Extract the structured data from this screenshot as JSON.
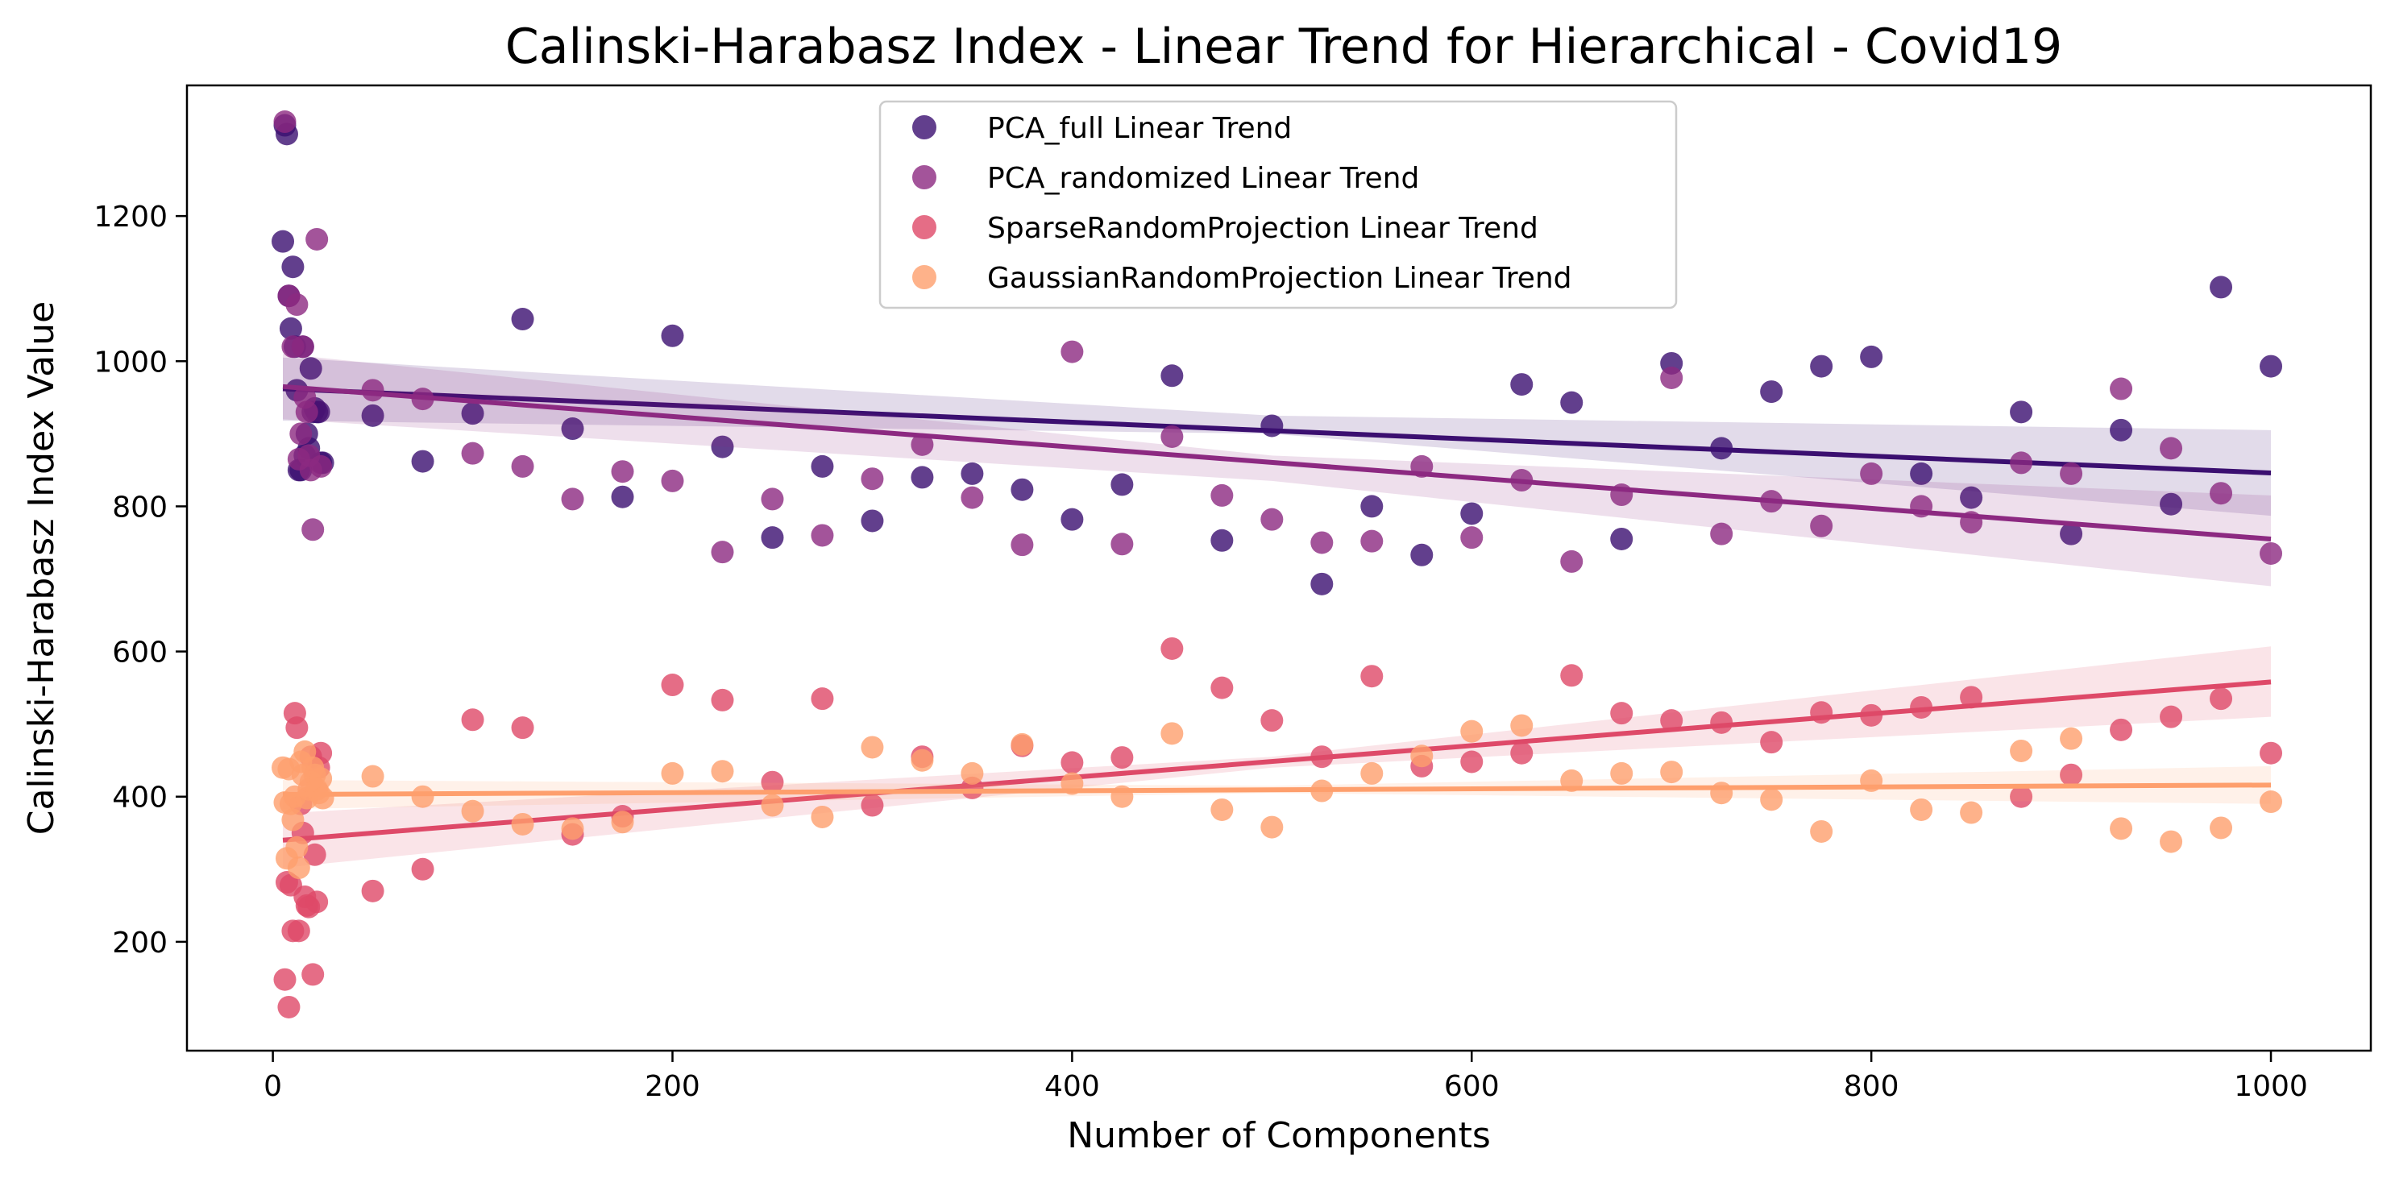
{
  "chart_data": {
    "type": "scatter",
    "title": "Calinski-Harabasz Index - Linear Trend for Hierarchical - Covid19",
    "xlabel": "Number of Components",
    "ylabel": "Calinski-Harabasz Index Value",
    "xlim": [
      -43,
      1050
    ],
    "ylim": [
      50,
      1380
    ],
    "xticks": [
      0,
      200,
      400,
      600,
      800,
      1000
    ],
    "yticks": [
      200,
      400,
      600,
      800,
      1000,
      1200
    ],
    "grid": false,
    "legend_position": "top-center",
    "series": [
      {
        "name": "PCA_full Linear Trend",
        "color": "#3b0f70",
        "trend": {
          "x": [
            5,
            1000
          ],
          "y": [
            962,
            846
          ]
        },
        "band": {
          "x": [
            5,
            500,
            1000
          ],
          "upper": [
            1005,
            925,
            905
          ],
          "lower": [
            918,
            900,
            787
          ]
        },
        "x": [
          5,
          6,
          7,
          8,
          9,
          10,
          11,
          12,
          13,
          14,
          15,
          16,
          17,
          18,
          19,
          20,
          21,
          22,
          23,
          24,
          25,
          50,
          75,
          100,
          125,
          150,
          175,
          200,
          225,
          250,
          275,
          300,
          325,
          350,
          375,
          400,
          425,
          450,
          475,
          500,
          525,
          550,
          575,
          600,
          625,
          650,
          675,
          700,
          725,
          750,
          775,
          800,
          825,
          850,
          875,
          900,
          925,
          950,
          975,
          1000
        ],
        "y": [
          1165,
          1325,
          1313,
          1090,
          1045,
          1130,
          1020,
          960,
          850,
          850,
          1020,
          870,
          900,
          880,
          990,
          930,
          935,
          930,
          930,
          860,
          860,
          925,
          862,
          928,
          1058,
          907,
          813,
          1035,
          882,
          757,
          855,
          780,
          840,
          845,
          823,
          782,
          830,
          980,
          753,
          911,
          693,
          800,
          733,
          790,
          968,
          943,
          755,
          997,
          880,
          958,
          993,
          1006,
          845,
          812,
          930,
          762,
          905,
          803,
          1102,
          993
        ]
      },
      {
        "name": "PCA_randomized Linear Trend",
        "color": "#8c2981",
        "trend": {
          "x": [
            5,
            1000
          ],
          "y": [
            965,
            755
          ]
        },
        "band": {
          "x": [
            5,
            500,
            1000
          ],
          "upper": [
            1010,
            870,
            815
          ],
          "lower": [
            920,
            835,
            690
          ]
        },
        "x": [
          6,
          8,
          10,
          12,
          13,
          14,
          15,
          16,
          17,
          18,
          19,
          20,
          22,
          24,
          50,
          75,
          100,
          125,
          150,
          175,
          200,
          225,
          250,
          275,
          300,
          325,
          350,
          375,
          400,
          425,
          450,
          475,
          500,
          525,
          550,
          575,
          600,
          625,
          650,
          675,
          700,
          725,
          750,
          775,
          800,
          825,
          850,
          875,
          900,
          925,
          950,
          975,
          1000
        ],
        "y": [
          1330,
          1090,
          1020,
          1078,
          865,
          900,
          1020,
          950,
          930,
          870,
          850,
          768,
          1168,
          855,
          960,
          948,
          873,
          855,
          810,
          848,
          835,
          737,
          810,
          760,
          838,
          885,
          812,
          747,
          1013,
          748,
          896,
          815,
          782,
          750,
          752,
          855,
          757,
          836,
          724,
          816,
          977,
          762,
          807,
          773,
          845,
          800,
          778,
          860,
          845,
          962,
          880,
          818,
          735
        ]
      },
      {
        "name": "SparseRandomProjection Linear Trend",
        "color": "#de4968",
        "trend": {
          "x": [
            5,
            1000
          ],
          "y": [
            340,
            558
          ]
        },
        "band": {
          "x": [
            5,
            500,
            1000
          ],
          "upper": [
            377,
            455,
            607
          ],
          "lower": [
            302,
            440,
            510
          ]
        },
        "x": [
          6,
          7,
          8,
          9,
          10,
          11,
          12,
          13,
          14,
          15,
          16,
          17,
          18,
          19,
          20,
          21,
          22,
          23,
          24,
          50,
          75,
          100,
          125,
          150,
          175,
          200,
          225,
          250,
          275,
          300,
          325,
          350,
          375,
          400,
          425,
          450,
          475,
          500,
          525,
          550,
          575,
          600,
          625,
          650,
          675,
          700,
          725,
          750,
          775,
          800,
          825,
          850,
          875,
          900,
          925,
          950,
          975,
          1000
        ],
        "y": [
          148,
          282,
          110,
          278,
          215,
          515,
          495,
          215,
          390,
          350,
          262,
          250,
          248,
          455,
          155,
          320,
          255,
          440,
          460,
          270,
          300,
          506,
          495,
          348,
          373,
          554,
          533,
          420,
          535,
          388,
          455,
          412,
          470,
          447,
          454,
          604,
          550,
          505,
          455,
          566,
          442,
          448,
          460,
          567,
          515,
          505,
          502,
          475,
          516,
          512,
          523,
          537,
          400,
          430,
          492,
          510,
          535,
          460
        ]
      },
      {
        "name": "GaussianRandomProjection Linear Trend",
        "color": "#fe9f6d",
        "trend": {
          "x": [
            5,
            1000
          ],
          "y": [
            403,
            416
          ]
        },
        "band": {
          "x": [
            5,
            500,
            1000
          ],
          "upper": [
            423,
            415,
            442
          ],
          "lower": [
            383,
            405,
            390
          ]
        },
        "x": [
          5,
          6,
          7,
          8,
          9,
          10,
          11,
          12,
          13,
          14,
          15,
          16,
          17,
          18,
          19,
          20,
          21,
          22,
          23,
          24,
          25,
          50,
          75,
          100,
          125,
          150,
          175,
          200,
          225,
          250,
          275,
          300,
          325,
          350,
          375,
          400,
          425,
          450,
          475,
          500,
          525,
          550,
          575,
          600,
          625,
          650,
          675,
          700,
          725,
          750,
          775,
          800,
          825,
          850,
          875,
          900,
          925,
          950,
          975,
          1000
        ],
        "y": [
          440,
          392,
          315,
          438,
          390,
          368,
          400,
          330,
          302,
          448,
          430,
          462,
          398,
          410,
          420,
          440,
          430,
          410,
          405,
          425,
          398,
          428,
          400,
          380,
          362,
          356,
          365,
          432,
          435,
          388,
          372,
          468,
          450,
          432,
          472,
          418,
          400,
          487,
          382,
          358,
          408,
          432,
          456,
          490,
          498,
          422,
          432,
          434,
          405,
          396,
          352,
          422,
          382,
          378,
          463,
          480,
          356,
          338,
          357,
          393
        ]
      }
    ]
  }
}
